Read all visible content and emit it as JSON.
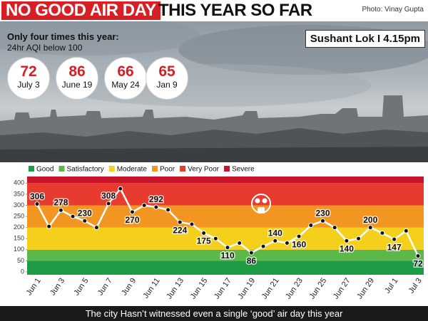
{
  "header": {
    "title_highlight": "NO GOOD AIR DAY",
    "title_rest": "THIS YEAR SO FAR",
    "photo_credit": "Photo: Vinay Gupta"
  },
  "inset": {
    "heading": "Only four times this year:",
    "subheading": "24hr AQI below 100",
    "days": [
      {
        "value": 72,
        "date": "July 3"
      },
      {
        "value": 86,
        "date": "June 19"
      },
      {
        "value": 66,
        "date": "May 24"
      },
      {
        "value": 65,
        "date": "Jan 9"
      }
    ]
  },
  "location": "Sushant Lok I 4.15pm",
  "chart_data": {
    "type": "line",
    "categories": [
      "Jun 1",
      null,
      "Jun 3",
      null,
      "Jun 5",
      null,
      "Jun 7",
      null,
      "Jun 9",
      null,
      "Jun 11",
      null,
      "Jun 13",
      null,
      "Jun 15",
      null,
      "Jun 17",
      null,
      "Jun 19",
      null,
      "Jun 21",
      null,
      "Jun 23",
      null,
      "Jun 25",
      null,
      "Jun 27",
      null,
      "Jun 29",
      null,
      "Jul 1",
      null,
      "Jul 3"
    ],
    "values": [
      306,
      205,
      278,
      250,
      230,
      200,
      308,
      375,
      270,
      300,
      292,
      280,
      224,
      215,
      175,
      150,
      110,
      130,
      86,
      115,
      140,
      130,
      160,
      210,
      230,
      200,
      140,
      150,
      200,
      175,
      147,
      185,
      72
    ],
    "value_labels": [
      "306",
      null,
      "278",
      null,
      "230",
      null,
      "308",
      null,
      "270",
      null,
      "292",
      null,
      "224",
      null,
      "175",
      null,
      "110",
      null,
      "86",
      null,
      "140",
      null,
      "160",
      null,
      "230",
      null,
      "140",
      null,
      "200",
      null,
      "147",
      null,
      "72"
    ],
    "color": "#ffffff",
    "ylim": [
      0,
      430
    ],
    "yticks": [
      0,
      50,
      100,
      150,
      200,
      250,
      300,
      350,
      400
    ],
    "bands": [
      {
        "name": "Good",
        "color": "#1e9b45",
        "from": 0,
        "to": 50
      },
      {
        "name": "Satisfactory",
        "color": "#5cb848",
        "from": 50,
        "to": 100
      },
      {
        "name": "Moderate",
        "color": "#f4cf1c",
        "from": 100,
        "to": 200
      },
      {
        "name": "Poor",
        "color": "#f29621",
        "from": 200,
        "to": 300
      },
      {
        "name": "Very Poor",
        "color": "#e63b2e",
        "from": 300,
        "to": 400
      },
      {
        "name": "Severe",
        "color": "#c8142b",
        "from": 400,
        "to": 500
      }
    ]
  },
  "footer": "The city Hasn’t witnessed even a single ‘good’ air day this year"
}
